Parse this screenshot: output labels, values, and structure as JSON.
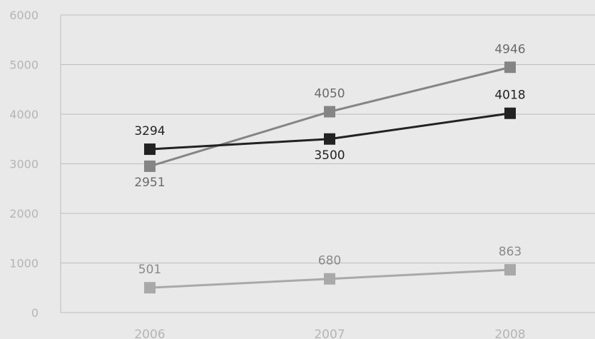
{
  "chart_data": {
    "type": "line",
    "categories": [
      "2006",
      "2007",
      "2008"
    ],
    "ylim": [
      0,
      6000
    ],
    "y_ticks": [
      0,
      1000,
      2000,
      3000,
      4000,
      5000,
      6000
    ],
    "grid": true,
    "series": [
      {
        "values": [
          3294,
          3500,
          4018
        ],
        "color": "#222222",
        "label_color": "#222222",
        "label_positions": [
          "above",
          "below",
          "above"
        ]
      },
      {
        "values": [
          2951,
          4050,
          4946
        ],
        "color": "#858585",
        "label_color": "#6a6a6a",
        "label_positions": [
          "below",
          "above",
          "above"
        ]
      },
      {
        "values": [
          501,
          680,
          863
        ],
        "color": "#a9a9a9",
        "label_color": "#8a8a8a",
        "label_positions": [
          "above",
          "above",
          "above"
        ]
      }
    ]
  }
}
